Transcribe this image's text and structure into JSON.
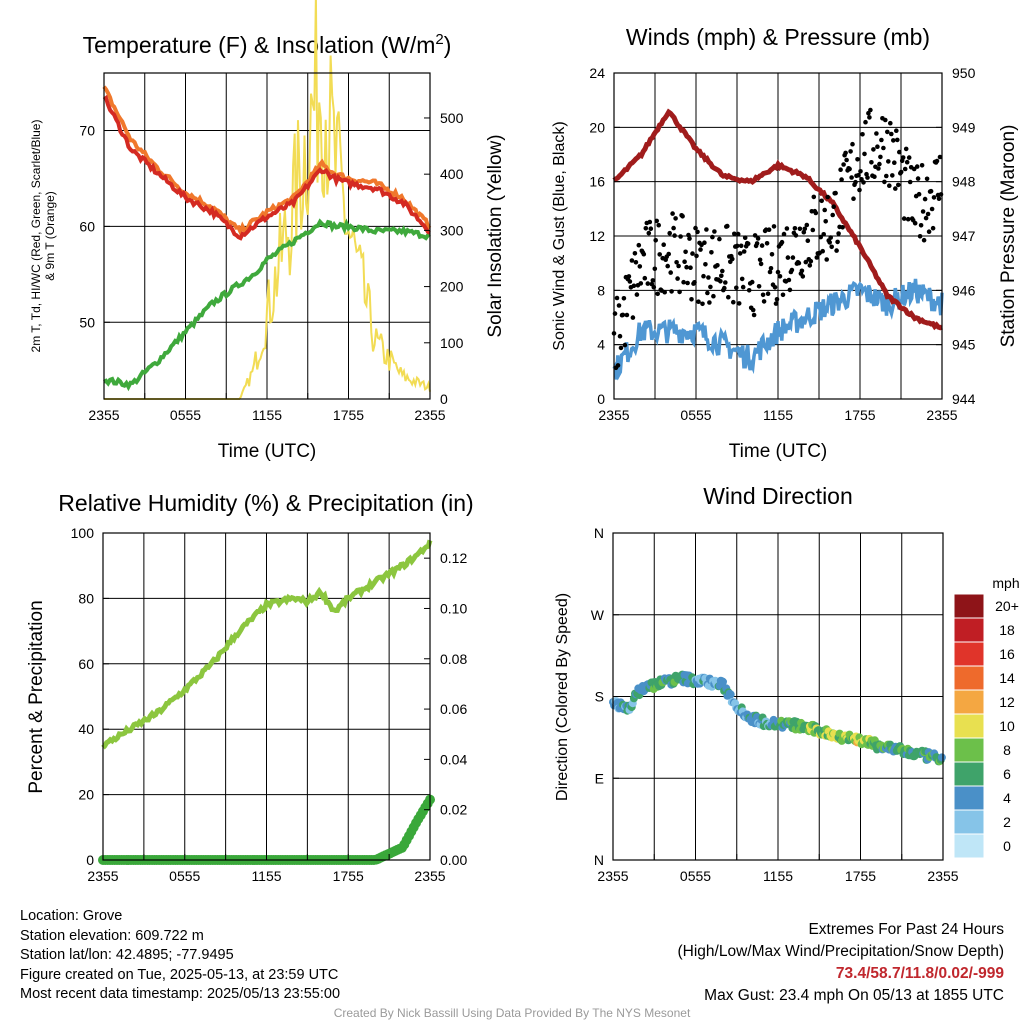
{
  "time_ticks": [
    "2355",
    "0555",
    "1155",
    "1755",
    "2355"
  ],
  "charts": {
    "temperature": {
      "title": "Temperature (F) & Insolation (W/m²)",
      "title_main": "Temperature (F) & Insolation (W/m",
      "title_sup": "2",
      "title_end": ")",
      "ylabel_left_line1": "2m T, Td, HI/WC (Red, Green, Scarlet/Blue)",
      "ylabel_left_line2": "& 9m T (Orange)",
      "ylabel_right": "Solar Insolation (Yellow)",
      "xlabel": "Time (UTC)",
      "left_ticks": [
        "50",
        "60",
        "70"
      ],
      "right_ticks": [
        "0",
        "100",
        "200",
        "300",
        "400",
        "500"
      ]
    },
    "winds": {
      "title": "Winds (mph) & Pressure (mb)",
      "ylabel_left": "Sonic Wind & Gust (Blue, Black)",
      "ylabel_right": "Station Pressure (Maroon)",
      "xlabel": "Time (UTC)",
      "left_ticks": [
        "0",
        "4",
        "8",
        "12",
        "16",
        "20",
        "24"
      ],
      "right_ticks": [
        "944",
        "945",
        "946",
        "947",
        "948",
        "949",
        "950"
      ]
    },
    "humidity": {
      "title": "Relative Humidity (%) & Precipitation (in)",
      "ylabel_left": "Percent & Precipitation",
      "left_ticks": [
        "0",
        "20",
        "40",
        "60",
        "80",
        "100"
      ],
      "right_ticks": [
        "0.00",
        "0.02",
        "0.04",
        "0.06",
        "0.08",
        "0.10",
        "0.12"
      ]
    },
    "direction": {
      "title": "Wind Direction",
      "ylabel_left": "Direction (Colored By Speed)",
      "left_ticks": [
        "N",
        "E",
        "S",
        "W",
        "N"
      ],
      "colorbar_unit": "mph",
      "colorbar_labels": [
        "0",
        "2",
        "4",
        "6",
        "8",
        "10",
        "12",
        "14",
        "16",
        "18",
        "20+"
      ],
      "colorbar_colors": [
        "#bfe6f7",
        "#86c4e8",
        "#4a90c8",
        "#3fa36a",
        "#6cc04a",
        "#e8e050",
        "#f4a742",
        "#ee6a2c",
        "#e0342a",
        "#c01e24",
        "#8e1418"
      ]
    }
  },
  "chart_data": [
    {
      "type": "line",
      "title": "Temperature (F) & Insolation (W/m2)",
      "xlabel": "Time (UTC)",
      "x_ticks": [
        "2355",
        "0555",
        "1155",
        "1755",
        "2355"
      ],
      "x": [
        0,
        2,
        4,
        6,
        8,
        10,
        11,
        12,
        14,
        16,
        17,
        18,
        20,
        22,
        24
      ],
      "ylim": [
        42,
        76
      ],
      "y2lim": [
        0,
        580
      ],
      "colors": {
        "temp_2m": "#d42a22",
        "temp_9m": "#f0782c",
        "dewpoint": "#3fa93c",
        "insolation": "#f2dc55"
      },
      "series": [
        {
          "name": "2m T",
          "axis": "left",
          "values": [
            73.5,
            68,
            65.5,
            63,
            61.5,
            59,
            60,
            61,
            62.5,
            66,
            65,
            64.5,
            64,
            62.5,
            59.5
          ]
        },
        {
          "name": "9m T",
          "axis": "left",
          "values": [
            74.5,
            69,
            66,
            63.5,
            62,
            59.5,
            60.5,
            61.5,
            63,
            66.5,
            65.5,
            65,
            64.5,
            63,
            60
          ]
        },
        {
          "name": "Td",
          "axis": "left",
          "values": [
            44,
            43.5,
            46,
            49,
            52,
            54,
            55,
            56.5,
            58.5,
            60.5,
            60,
            60,
            59.5,
            59.5,
            59
          ]
        },
        {
          "name": "Solar Insolation",
          "axis": "right",
          "values": [
            0,
            0,
            0,
            0,
            0,
            0,
            50,
            150,
            350,
            580,
            420,
            300,
            100,
            40,
            20
          ]
        }
      ]
    },
    {
      "type": "line",
      "title": "Winds (mph) & Pressure (mb)",
      "xlabel": "Time (UTC)",
      "x_ticks": [
        "2355",
        "0555",
        "1155",
        "1755",
        "2355"
      ],
      "x": [
        0,
        2,
        4,
        6,
        8,
        10,
        12,
        14,
        16,
        18,
        20,
        22,
        24
      ],
      "ylim": [
        0,
        24
      ],
      "y2lim": [
        944,
        950
      ],
      "colors": {
        "wind": "#4f97d3",
        "gust": "#000000",
        "pressure": "#a01c1c"
      },
      "series": [
        {
          "name": "Sonic Wind",
          "axis": "left",
          "values": [
            2,
            5,
            5,
            5,
            4,
            3,
            5,
            6,
            7,
            8,
            7,
            8,
            7
          ]
        },
        {
          "name": "Gust",
          "axis": "left",
          "values": [
            4,
            10,
            11,
            10,
            10,
            9,
            10,
            12,
            13,
            18,
            19,
            14,
            16
          ]
        },
        {
          "name": "Station Pressure",
          "axis": "right",
          "values": [
            948,
            948.5,
            949.3,
            948.6,
            948.1,
            948,
            948.3,
            948.1,
            947.6,
            946.8,
            945.9,
            945.5,
            945.3
          ]
        }
      ]
    },
    {
      "type": "line",
      "title": "Relative Humidity (%) & Precipitation (in)",
      "x_ticks": [
        "2355",
        "0555",
        "1155",
        "1755",
        "2355"
      ],
      "x": [
        0,
        2,
        4,
        6,
        8,
        10,
        12,
        14,
        15,
        16,
        17,
        18,
        20,
        22,
        23,
        24
      ],
      "ylim": [
        0,
        100
      ],
      "y2lim": [
        0,
        0.13
      ],
      "colors": {
        "rh": "#8cc63f",
        "precip": "#3aa83a"
      },
      "series": [
        {
          "name": "Relative Humidity",
          "axis": "left",
          "values": [
            35,
            40,
            45,
            52,
            60,
            70,
            78,
            80,
            79,
            82,
            76,
            80,
            85,
            90,
            93,
            97
          ]
        },
        {
          "name": "Precipitation",
          "axis": "right",
          "values": [
            0,
            0,
            0,
            0,
            0,
            0,
            0,
            0,
            0,
            0,
            0,
            0,
            0,
            0.005,
            0.015,
            0.024
          ]
        }
      ]
    },
    {
      "type": "scatter",
      "title": "Wind Direction",
      "x_ticks": [
        "2355",
        "0555",
        "1155",
        "1755",
        "2355"
      ],
      "ylabel": "Direction (Colored By Speed)",
      "ylim": [
        0,
        360
      ],
      "y_ticks": [
        "N",
        "E",
        "S",
        "W",
        "N"
      ],
      "x": [
        0,
        1,
        2,
        3,
        4,
        5,
        6,
        7,
        8,
        9,
        10,
        11,
        12,
        13,
        14,
        15,
        16,
        17,
        18,
        19,
        20,
        21,
        22,
        23,
        24
      ],
      "direction": [
        175,
        165,
        188,
        193,
        197,
        200,
        198,
        196,
        192,
        170,
        156,
        152,
        150,
        149,
        146,
        142,
        138,
        135,
        132,
        127,
        124,
        120,
        117,
        114,
        111
      ],
      "speed": [
        3,
        4,
        5,
        6,
        5,
        6,
        4,
        3,
        4,
        3,
        4,
        4,
        5,
        6,
        7,
        8,
        9,
        8,
        10,
        7,
        6,
        7,
        5,
        6,
        5
      ]
    }
  ],
  "info": {
    "location": "Location: Grove",
    "elevation": "Station elevation: 609.722 m",
    "latlon": "Station lat/lon: 42.4895; -77.9495",
    "created": "Figure created on Tue, 2025-05-13, at 23:59 UTC",
    "recent": "Most recent data timestamp: 2025/05/13 23:55:00"
  },
  "extremes": {
    "title": "Extremes For Past 24 Hours",
    "subtitle": "(High/Low/Max Wind/Precipitation/Snow Depth)",
    "values": "73.4/58.7/11.8/0.02/-999",
    "max_gust": "Max Gust: 23.4 mph On 05/13 at 1855 UTC"
  },
  "credit": "Created By Nick Bassill Using Data Provided By The NYS Mesonet"
}
